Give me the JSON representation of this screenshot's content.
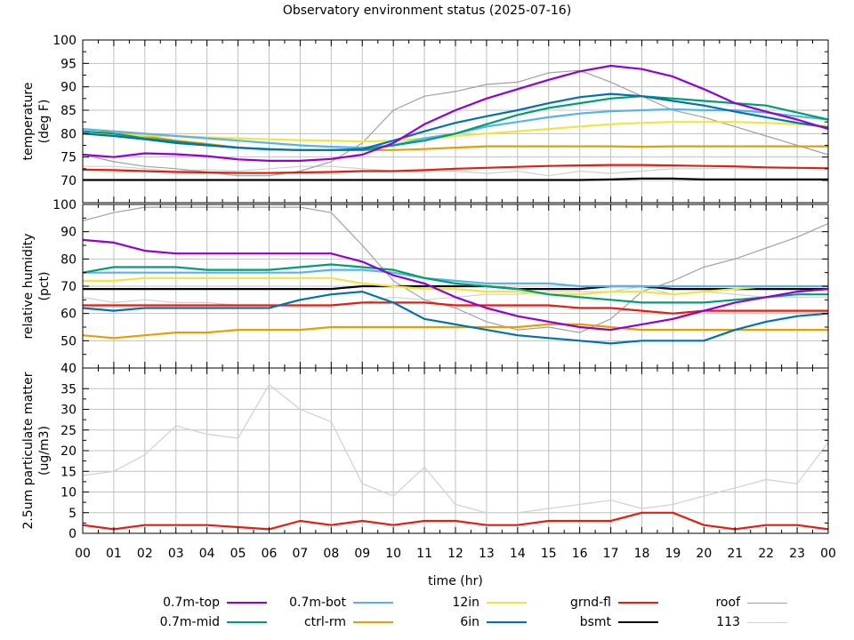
{
  "page": {
    "title": "Observatory environment status (2025-07-16)"
  },
  "legend": {
    "items": [
      {
        "label": "0.7m-top",
        "color": "#9400d3",
        "width": 2
      },
      {
        "label": "0.7m-mid",
        "color": "#009e73",
        "width": 2
      },
      {
        "label": "0.7m-bot",
        "color": "#56b4e9",
        "width": 2
      },
      {
        "label": "ctrl-rm",
        "color": "#e69f00",
        "width": 2
      },
      {
        "label": "12in",
        "color": "#f0e442",
        "width": 2
      },
      {
        "label": "6in",
        "color": "#0072b2",
        "width": 2
      },
      {
        "label": "grnd-fl",
        "color": "#e51e10",
        "width": 2
      },
      {
        "label": "bsmt",
        "color": "#000000",
        "width": 2
      },
      {
        "label": "roof",
        "color": "#a0a0a0",
        "width": 1
      },
      {
        "label": "113",
        "color": "#d0d0d0",
        "width": 1
      }
    ]
  },
  "chart_data": [
    {
      "type": "line",
      "title": "Observatory environment status (2025-07-16)",
      "xlabel": "time (hr)",
      "ylabel": "temperature\n(deg F)",
      "ylabel_lines": [
        "temperature",
        "(deg F)"
      ],
      "xlim": [
        0,
        24
      ],
      "ylim": [
        70,
        100
      ],
      "yticks": [
        70,
        75,
        80,
        85,
        90,
        95,
        100
      ],
      "grid": true,
      "x": [
        0,
        1,
        2,
        3,
        4,
        5,
        6,
        7,
        8,
        9,
        10,
        11,
        12,
        13,
        14,
        15,
        16,
        17,
        18,
        19,
        20,
        21,
        22,
        23,
        24
      ],
      "series": [
        {
          "name": "113",
          "values": [
            73,
            73,
            72.5,
            72,
            72.3,
            72,
            72.5,
            73,
            73,
            72.5,
            72,
            72,
            72,
            71.5,
            72,
            71,
            72,
            71.5,
            72,
            72.5,
            72.5,
            72.7,
            72.8,
            72.8,
            72.5
          ]
        },
        {
          "name": "roof",
          "values": [
            75.5,
            74,
            73,
            72.5,
            71.8,
            71,
            71,
            72,
            74,
            78,
            85,
            88,
            89,
            90.5,
            91,
            93,
            93.5,
            91,
            88,
            85,
            83.5,
            81.5,
            79.5,
            77.5,
            75.5
          ]
        },
        {
          "name": "bsmt",
          "values": [
            70.1,
            70.1,
            70.1,
            70.1,
            70.1,
            70.1,
            70.1,
            70.1,
            70.1,
            70.1,
            70.1,
            70.1,
            70.1,
            70.1,
            70.1,
            70.1,
            70.1,
            70.2,
            70.4,
            70.4,
            70.2,
            70.2,
            70.2,
            70.2,
            70.2
          ]
        },
        {
          "name": "grnd-fl",
          "values": [
            72.3,
            72.2,
            72,
            71.8,
            71.7,
            71.6,
            71.6,
            71.7,
            71.8,
            72,
            72,
            72.2,
            72.5,
            72.7,
            72.9,
            73.1,
            73.2,
            73.3,
            73.3,
            73.2,
            73.1,
            73,
            72.8,
            72.7,
            72.6
          ]
        },
        {
          "name": "ctrl-rm",
          "values": [
            80,
            80.5,
            79.5,
            78.5,
            77.8,
            77,
            76.6,
            76.5,
            76.5,
            76.5,
            76.5,
            76.7,
            77,
            77.3,
            77.3,
            77.3,
            77.3,
            77.3,
            77.2,
            77.3,
            77.3,
            77.3,
            77.3,
            77.3,
            77.3
          ]
        },
        {
          "name": "12in",
          "values": [
            80,
            79.8,
            79.6,
            79.5,
            79.2,
            79,
            78.8,
            78.6,
            78.5,
            78.3,
            78.5,
            79,
            79.5,
            80,
            80.5,
            81,
            81.5,
            82,
            82.3,
            82.5,
            82.5,
            82.5,
            82.3,
            82,
            81.6
          ]
        },
        {
          "name": "0.7m-bot",
          "values": [
            81,
            80.5,
            80,
            79.5,
            79,
            78.5,
            78,
            77.5,
            77.2,
            77,
            77.5,
            79,
            80,
            81.5,
            82.5,
            83.5,
            84.3,
            84.8,
            85,
            85.2,
            85,
            85,
            84.5,
            83.7,
            83
          ]
        },
        {
          "name": "0.7m-mid",
          "values": [
            80.5,
            80,
            79,
            78.3,
            77.6,
            77,
            76.6,
            76.5,
            76.5,
            76.5,
            77.5,
            78.5,
            80,
            82,
            84,
            85.5,
            86.5,
            87.5,
            88,
            87.5,
            87,
            86.5,
            86,
            84.5,
            83
          ]
        },
        {
          "name": "6in",
          "values": [
            80,
            79.5,
            78.8,
            78,
            77.5,
            77,
            76.7,
            76.5,
            76.5,
            76.7,
            78.5,
            80.5,
            82.3,
            83.7,
            85,
            86.5,
            87.8,
            88.5,
            88,
            87,
            86,
            84.7,
            83.5,
            82.3,
            81.3
          ]
        },
        {
          "name": "0.7m-top",
          "values": [
            75.5,
            75,
            75.8,
            75.6,
            75.2,
            74.5,
            74.2,
            74.2,
            74.6,
            75.5,
            78,
            82,
            85,
            87.5,
            89.5,
            91.5,
            93.3,
            94.5,
            93.8,
            92.2,
            89.5,
            86.5,
            84.7,
            83,
            81
          ]
        }
      ]
    },
    {
      "type": "line",
      "xlabel": "time (hr)",
      "ylabel": "relative humidity\n(pct)",
      "ylabel_lines": [
        "relative humidity",
        "(pct)"
      ],
      "xlim": [
        0,
        24
      ],
      "ylim": [
        40,
        100
      ],
      "yticks": [
        40,
        50,
        60,
        70,
        80,
        90,
        100
      ],
      "grid": true,
      "x": [
        0,
        1,
        2,
        3,
        4,
        5,
        6,
        7,
        8,
        9,
        10,
        11,
        12,
        13,
        14,
        15,
        16,
        17,
        18,
        19,
        20,
        21,
        22,
        23,
        24
      ],
      "series": [
        {
          "name": "113",
          "values": [
            66,
            64,
            65,
            64,
            64,
            63,
            63,
            63,
            63,
            64,
            66,
            65,
            66,
            67,
            67,
            68,
            68,
            68,
            70,
            67,
            68,
            67,
            66,
            66,
            66
          ]
        },
        {
          "name": "roof",
          "values": [
            94,
            97,
            99,
            99,
            99,
            99,
            99,
            99,
            97,
            85,
            72,
            65,
            62,
            57,
            54,
            55,
            53,
            58,
            68,
            72,
            77,
            80,
            84,
            88,
            93
          ]
        },
        {
          "name": "ctrl-rm",
          "values": [
            52,
            51,
            52,
            53,
            53,
            54,
            54,
            54,
            55,
            55,
            55,
            55,
            55,
            55,
            55,
            56,
            56,
            55,
            54,
            54,
            54,
            54,
            54,
            54,
            54
          ]
        },
        {
          "name": "grnd-fl",
          "values": [
            63,
            63,
            63,
            63,
            63,
            63,
            63,
            63,
            63,
            64,
            64,
            64,
            63,
            63,
            63,
            63,
            62,
            62,
            61,
            60,
            61,
            61,
            61,
            61,
            61
          ]
        },
        {
          "name": "6in",
          "values": [
            62,
            61,
            62,
            62,
            62,
            62,
            62,
            65,
            67,
            68,
            64,
            58,
            56,
            54,
            52,
            51,
            50,
            49,
            50,
            50,
            50,
            54,
            57,
            59,
            60
          ]
        },
        {
          "name": "bsmt",
          "values": [
            69,
            69,
            69,
            69,
            69,
            69,
            69,
            69,
            69,
            70,
            70,
            70,
            70,
            70,
            69,
            69,
            69,
            70,
            70,
            69,
            69,
            69,
            69,
            69,
            69
          ]
        },
        {
          "name": "12in",
          "values": [
            72,
            72,
            73,
            73,
            73,
            73,
            73,
            73,
            73,
            71,
            70,
            69,
            69,
            68,
            68,
            67,
            67,
            68,
            68,
            67,
            68,
            69,
            70,
            70,
            70
          ]
        },
        {
          "name": "0.7m-bot",
          "values": [
            75,
            75,
            75,
            75,
            75,
            75,
            75,
            75,
            76,
            76,
            75,
            73,
            72,
            71,
            71,
            71,
            70,
            70,
            70,
            70,
            70,
            70,
            70,
            70,
            70
          ]
        },
        {
          "name": "0.7m-mid",
          "values": [
            75,
            77,
            77,
            77,
            76,
            76,
            76,
            77,
            78,
            77,
            76,
            73,
            71,
            70,
            69,
            67,
            66,
            65,
            64,
            64,
            64,
            65,
            66,
            67,
            67
          ]
        },
        {
          "name": "0.7m-top",
          "values": [
            87,
            86,
            83,
            82,
            82,
            82,
            82,
            82,
            82,
            79,
            74,
            71,
            66,
            62,
            59,
            57,
            55,
            54,
            56,
            58,
            61,
            64,
            66,
            68,
            69
          ]
        }
      ]
    },
    {
      "type": "line",
      "xlabel": "time (hr)",
      "ylabel": "2.5um particulate matter\n(ug/m3)",
      "ylabel_lines": [
        "2.5um particulate matter",
        "(ug/m3)"
      ],
      "xlim": [
        0,
        24
      ],
      "ylim": [
        0,
        40
      ],
      "yticks": [
        0,
        5,
        10,
        15,
        20,
        25,
        30,
        35
      ],
      "xticks": [
        "00",
        "01",
        "02",
        "03",
        "04",
        "05",
        "06",
        "07",
        "08",
        "09",
        "10",
        "11",
        "12",
        "13",
        "14",
        "15",
        "16",
        "17",
        "18",
        "19",
        "20",
        "21",
        "22",
        "23",
        "00"
      ],
      "grid": true,
      "x": [
        0,
        1,
        2,
        3,
        4,
        5,
        6,
        7,
        8,
        9,
        10,
        11,
        12,
        13,
        14,
        15,
        16,
        17,
        18,
        19,
        20,
        21,
        22,
        23,
        24
      ],
      "series": [
        {
          "name": "113",
          "values": [
            14,
            15,
            19,
            26,
            24,
            23,
            36,
            30,
            27,
            12,
            9,
            16,
            7,
            5,
            5,
            6,
            7,
            8,
            6,
            7,
            9,
            11,
            13,
            12,
            22
          ]
        },
        {
          "name": "grnd-fl",
          "values": [
            2,
            1,
            2,
            2,
            2,
            1.5,
            1,
            3,
            2,
            3,
            2,
            3,
            3,
            2,
            2,
            3,
            3,
            3,
            5,
            5,
            2,
            1,
            2,
            2,
            1
          ]
        }
      ]
    }
  ]
}
